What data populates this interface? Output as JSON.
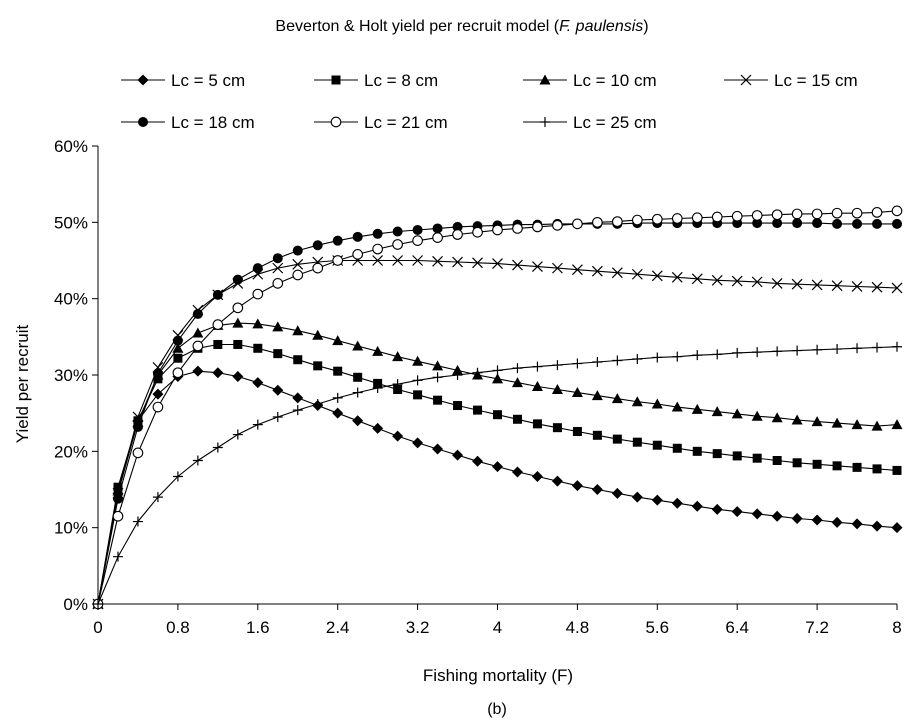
{
  "chart_data": {
    "type": "line",
    "title_prefix": "Beverton & Holt yield per recruit model (",
    "title_species": "F. paulensis",
    "title_suffix": ")",
    "xlabel": "Fishing mortality (F)",
    "ylabel": "Yield per recruit",
    "caption": "(b)",
    "xlim": [
      0,
      8
    ],
    "ylim": [
      0,
      0.6
    ],
    "xticks": [
      0,
      0.8,
      1.6,
      2.4,
      3.2,
      4,
      4.8,
      5.6,
      6.4,
      7.2,
      8
    ],
    "xtick_labels": [
      "0",
      "0.8",
      "1.6",
      "2.4",
      "3.2",
      "4",
      "4.8",
      "5.6",
      "6.4",
      "7.2",
      "8"
    ],
    "yticks": [
      0,
      0.1,
      0.2,
      0.3,
      0.4,
      0.5,
      0.6
    ],
    "ytick_labels": [
      "0%",
      "10%",
      "20%",
      "30%",
      "40%",
      "50%",
      "60%"
    ],
    "grid": false,
    "legend_position": "top",
    "x": [
      0,
      0.2,
      0.4,
      0.6,
      0.8,
      1.0,
      1.2,
      1.4,
      1.6,
      1.8,
      2.0,
      2.2,
      2.4,
      2.6,
      2.8,
      3.0,
      3.2,
      3.4,
      3.6,
      3.8,
      4.0,
      4.2,
      4.4,
      4.6,
      4.8,
      5.0,
      5.2,
      5.4,
      5.6,
      5.8,
      6.0,
      6.2,
      6.4,
      6.6,
      6.8,
      7.0,
      7.2,
      7.4,
      7.6,
      7.8,
      8.0
    ],
    "series": [
      {
        "name": "Lc = 5 cm",
        "marker": "diamond",
        "values": [
          0,
          0.145,
          0.24,
          0.275,
          0.298,
          0.305,
          0.303,
          0.298,
          0.29,
          0.28,
          0.27,
          0.26,
          0.25,
          0.24,
          0.23,
          0.22,
          0.211,
          0.203,
          0.195,
          0.187,
          0.18,
          0.173,
          0.167,
          0.161,
          0.155,
          0.15,
          0.145,
          0.14,
          0.136,
          0.132,
          0.128,
          0.124,
          0.121,
          0.118,
          0.115,
          0.112,
          0.11,
          0.107,
          0.105,
          0.102,
          0.1
        ]
      },
      {
        "name": "Lc = 8 cm",
        "marker": "square",
        "values": [
          0,
          0.153,
          0.24,
          0.295,
          0.322,
          0.335,
          0.34,
          0.34,
          0.335,
          0.328,
          0.32,
          0.312,
          0.305,
          0.297,
          0.289,
          0.281,
          0.274,
          0.267,
          0.26,
          0.254,
          0.248,
          0.242,
          0.236,
          0.231,
          0.226,
          0.221,
          0.216,
          0.212,
          0.208,
          0.204,
          0.2,
          0.197,
          0.194,
          0.191,
          0.188,
          0.185,
          0.183,
          0.181,
          0.179,
          0.177,
          0.175
        ]
      },
      {
        "name": "Lc = 10 cm",
        "marker": "triangle",
        "values": [
          0,
          0.148,
          0.238,
          0.3,
          0.335,
          0.355,
          0.365,
          0.368,
          0.367,
          0.363,
          0.358,
          0.352,
          0.345,
          0.338,
          0.331,
          0.324,
          0.318,
          0.312,
          0.306,
          0.3,
          0.295,
          0.29,
          0.285,
          0.281,
          0.277,
          0.273,
          0.269,
          0.265,
          0.262,
          0.258,
          0.255,
          0.252,
          0.249,
          0.246,
          0.244,
          0.241,
          0.239,
          0.237,
          0.235,
          0.233,
          0.235
        ]
      },
      {
        "name": "Lc = 15 cm",
        "marker": "x",
        "values": [
          0,
          0.145,
          0.245,
          0.31,
          0.352,
          0.385,
          0.405,
          0.42,
          0.432,
          0.44,
          0.445,
          0.448,
          0.45,
          0.45,
          0.45,
          0.45,
          0.45,
          0.449,
          0.448,
          0.447,
          0.446,
          0.444,
          0.442,
          0.44,
          0.438,
          0.436,
          0.434,
          0.432,
          0.43,
          0.428,
          0.426,
          0.424,
          0.423,
          0.422,
          0.42,
          0.419,
          0.418,
          0.417,
          0.416,
          0.415,
          0.414
        ]
      },
      {
        "name": "Lc = 18 cm",
        "marker": "circle",
        "values": [
          0,
          0.138,
          0.232,
          0.302,
          0.345,
          0.38,
          0.405,
          0.425,
          0.44,
          0.453,
          0.463,
          0.47,
          0.476,
          0.481,
          0.485,
          0.488,
          0.49,
          0.492,
          0.494,
          0.495,
          0.496,
          0.497,
          0.497,
          0.498,
          0.498,
          0.498,
          0.498,
          0.499,
          0.499,
          0.499,
          0.499,
          0.499,
          0.499,
          0.499,
          0.499,
          0.499,
          0.499,
          0.498,
          0.498,
          0.498,
          0.498
        ]
      },
      {
        "name": "Lc = 21 cm",
        "marker": "open-circle",
        "values": [
          0,
          0.115,
          0.198,
          0.258,
          0.303,
          0.338,
          0.366,
          0.388,
          0.406,
          0.42,
          0.431,
          0.44,
          0.45,
          0.458,
          0.465,
          0.471,
          0.476,
          0.48,
          0.484,
          0.487,
          0.49,
          0.492,
          0.494,
          0.496,
          0.498,
          0.5,
          0.501,
          0.503,
          0.504,
          0.505,
          0.506,
          0.507,
          0.508,
          0.509,
          0.51,
          0.511,
          0.511,
          0.512,
          0.512,
          0.513,
          0.515
        ]
      },
      {
        "name": "Lc = 25 cm",
        "marker": "plus",
        "values": [
          0,
          0.062,
          0.108,
          0.14,
          0.167,
          0.188,
          0.205,
          0.222,
          0.235,
          0.245,
          0.254,
          0.262,
          0.27,
          0.277,
          0.283,
          0.288,
          0.293,
          0.297,
          0.3,
          0.303,
          0.306,
          0.309,
          0.311,
          0.313,
          0.315,
          0.317,
          0.319,
          0.321,
          0.323,
          0.324,
          0.326,
          0.327,
          0.329,
          0.33,
          0.331,
          0.332,
          0.333,
          0.334,
          0.335,
          0.336,
          0.337
        ]
      }
    ]
  }
}
